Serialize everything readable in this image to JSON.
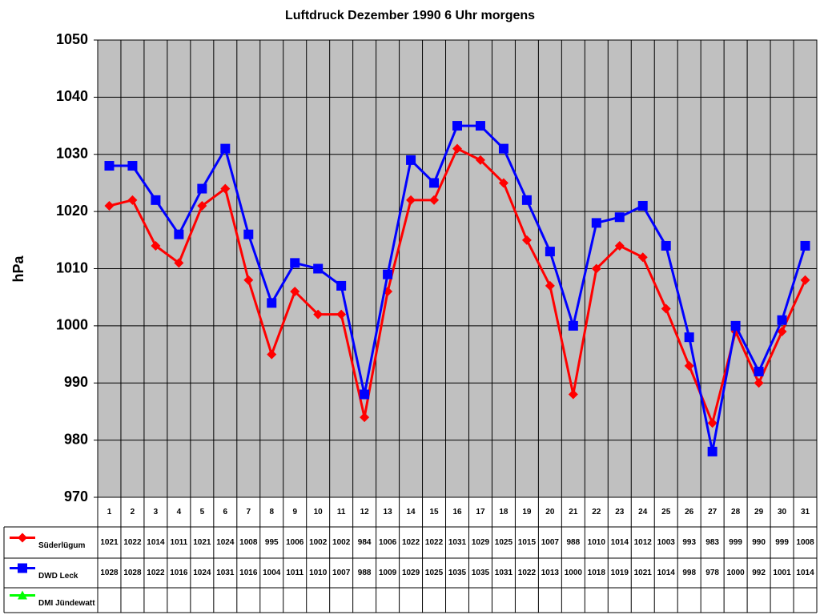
{
  "chart_data": {
    "type": "line",
    "title": "Luftdruck Dezember 1990 6 Uhr morgens",
    "y_label": "hPa",
    "categories": [
      "1",
      "2",
      "3",
      "4",
      "5",
      "6",
      "7",
      "8",
      "9",
      "10",
      "11",
      "12",
      "13",
      "14",
      "15",
      "16",
      "17",
      "18",
      "19",
      "20",
      "21",
      "22",
      "23",
      "24",
      "25",
      "26",
      "27",
      "28",
      "29",
      "30",
      "31"
    ],
    "series": [
      {
        "name": "Süderlügum",
        "color": "#ff0000",
        "marker": "diamond",
        "values": [
          1021,
          1022,
          1014,
          1011,
          1021,
          1024,
          1008,
          995,
          1006,
          1002,
          1002,
          984,
          1006,
          1022,
          1022,
          1031,
          1029,
          1025,
          1015,
          1007,
          988,
          1010,
          1014,
          1012,
          1003,
          993,
          983,
          999,
          990,
          999,
          1008
        ]
      },
      {
        "name": "DWD Leck",
        "color": "#0000ff",
        "marker": "square",
        "values": [
          1028,
          1028,
          1022,
          1016,
          1024,
          1031,
          1016,
          1004,
          1011,
          1010,
          1007,
          988,
          1009,
          1029,
          1025,
          1035,
          1035,
          1031,
          1022,
          1013,
          1000,
          1018,
          1019,
          1021,
          1014,
          998,
          978,
          1000,
          992,
          1001,
          1014
        ]
      },
      {
        "name": "DMI Jündewatt",
        "color": "#00ff00",
        "marker": "triangle",
        "values": [
          null,
          null,
          null,
          null,
          null,
          null,
          null,
          null,
          null,
          null,
          null,
          null,
          null,
          null,
          null,
          null,
          null,
          null,
          null,
          null,
          null,
          null,
          null,
          null,
          null,
          null,
          null,
          null,
          null,
          null,
          null
        ]
      }
    ],
    "ylim": [
      970,
      1050
    ],
    "yticks": [
      970,
      980,
      990,
      1000,
      1010,
      1020,
      1030,
      1040,
      1050
    ],
    "grid": true,
    "plot_background": "#c0c0c0"
  }
}
